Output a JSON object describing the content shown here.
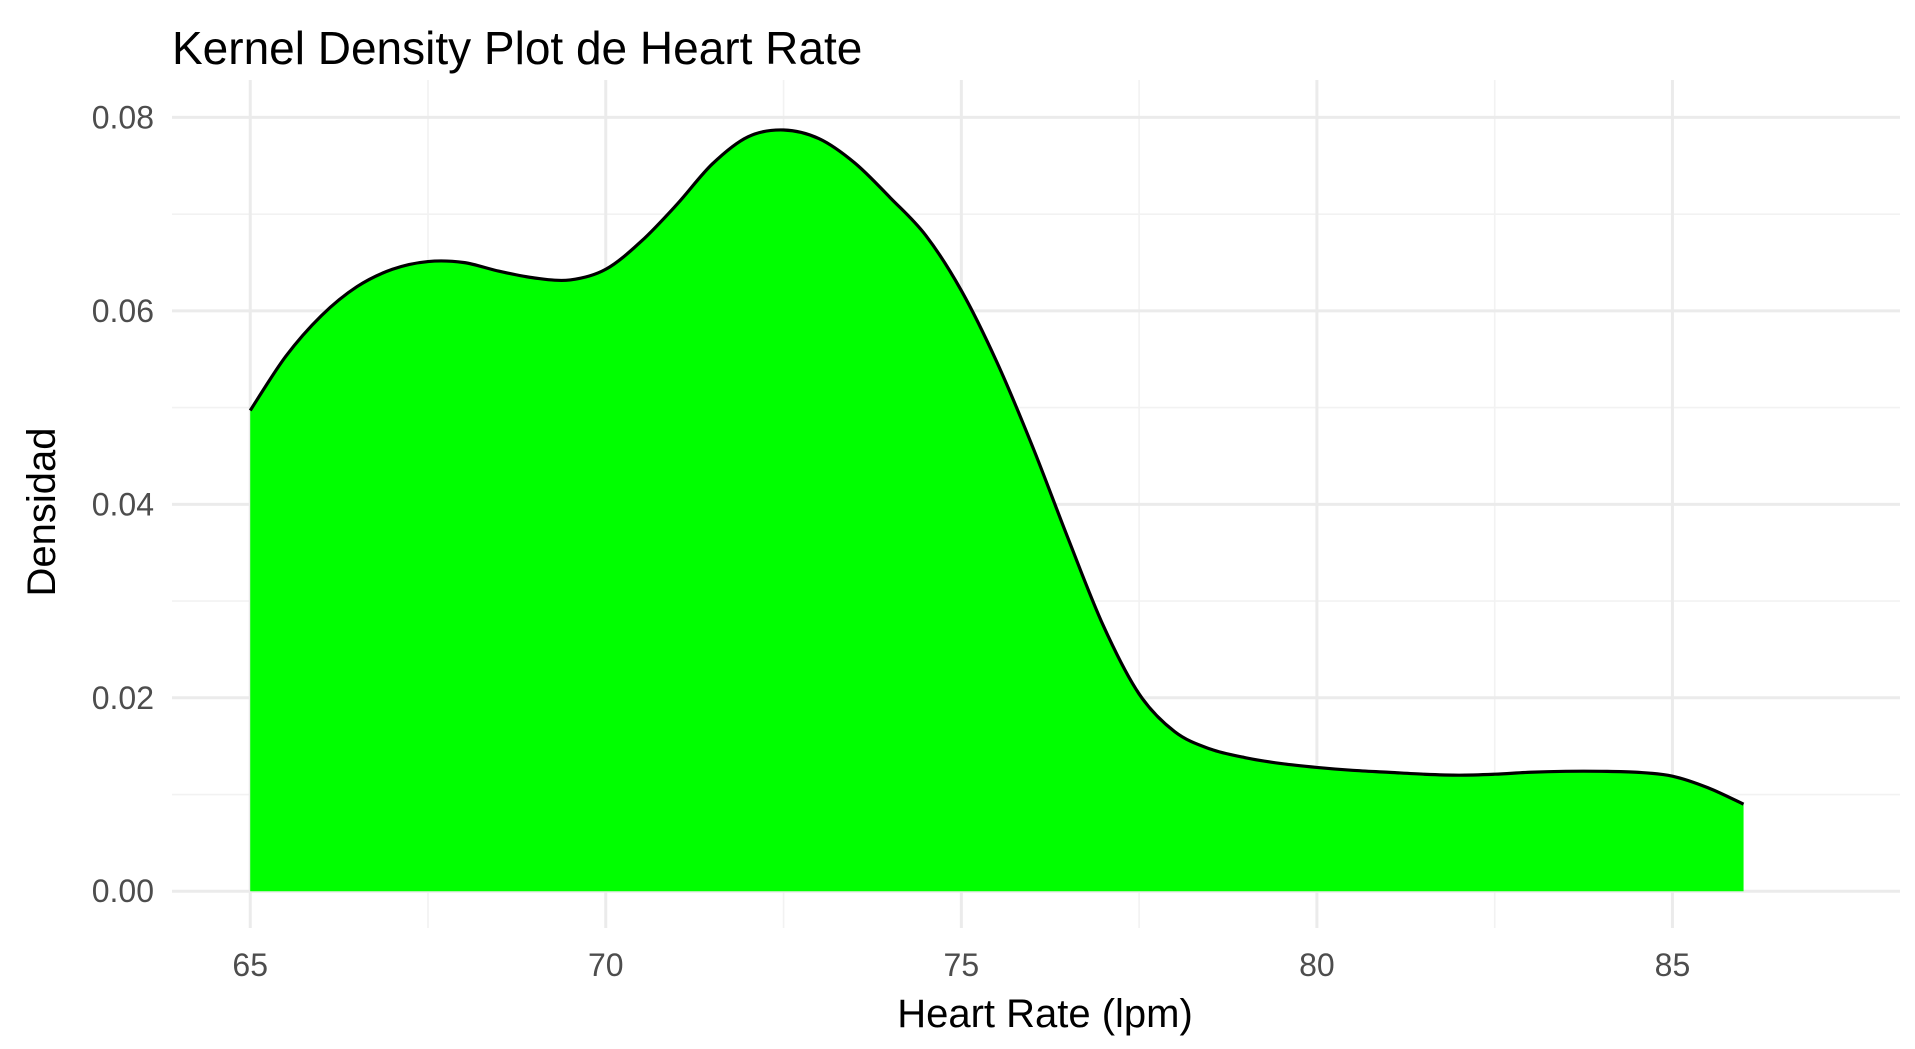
{
  "chart_data": {
    "type": "area",
    "title": "Kernel Density Plot de Heart Rate",
    "xlabel": "Heart Rate (lpm)",
    "ylabel": "Densidad",
    "xlim": [
      63.9,
      88.2
    ],
    "ylim": [
      -0.0038,
      0.0818
    ],
    "x_ticks": [
      65,
      70,
      75,
      80,
      85
    ],
    "y_ticks": [
      0.0,
      0.02,
      0.04,
      0.06,
      0.08
    ],
    "x_tick_labels": [
      "65",
      "70",
      "75",
      "80",
      "85"
    ],
    "y_tick_labels": [
      "0.00",
      "0.02",
      "0.04",
      "0.06",
      "0.08"
    ],
    "grid": true,
    "fill_color": "#00ff00",
    "line_color": "#000000",
    "x": [
      65.0,
      65.5,
      66.0,
      66.5,
      67.0,
      67.5,
      68.0,
      68.5,
      69.0,
      69.5,
      70.0,
      70.5,
      71.0,
      71.5,
      72.0,
      72.5,
      73.0,
      73.5,
      74.0,
      74.5,
      75.0,
      75.5,
      76.0,
      76.5,
      77.0,
      77.5,
      78.0,
      78.5,
      79.0,
      79.5,
      80.0,
      80.5,
      81.0,
      81.5,
      82.0,
      82.5,
      83.0,
      83.5,
      84.0,
      84.5,
      85.0,
      85.5,
      86.0
    ],
    "y": [
      0.0497,
      0.0553,
      0.0595,
      0.0625,
      0.0643,
      0.0651,
      0.065,
      0.0641,
      0.0634,
      0.0632,
      0.0643,
      0.0672,
      0.071,
      0.0752,
      0.078,
      0.0787,
      0.0778,
      0.0753,
      0.0717,
      0.0678,
      0.0621,
      0.0547,
      0.046,
      0.0365,
      0.0274,
      0.0204,
      0.0165,
      0.0147,
      0.0138,
      0.0132,
      0.0128,
      0.0125,
      0.0123,
      0.0121,
      0.012,
      0.0121,
      0.0123,
      0.0124,
      0.0124,
      0.0123,
      0.0119,
      0.0107,
      0.009
    ]
  }
}
